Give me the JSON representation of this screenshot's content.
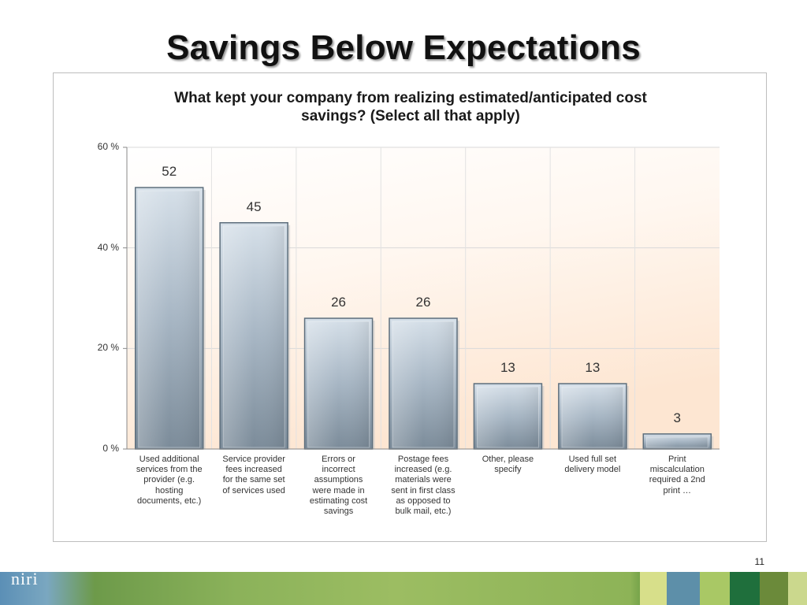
{
  "slide": {
    "title": "Savings Below Expectations",
    "page_number": "11",
    "logo_text": "niri"
  },
  "colors": {
    "bar_top": "#d4dee7",
    "bar_bottom": "#7e8e9c",
    "bar_border": "#5d6e7c",
    "plot_bg_top": "#ffffff",
    "plot_bg_bottom": "#fde8d6",
    "footer_green": "#8bb25a",
    "footer_blue": "#5b8fb6"
  },
  "chart_data": {
    "type": "bar",
    "title_lines": [
      "What kept your company from realizing estimated/anticipated cost",
      "savings? (Select all that apply)"
    ],
    "categories": [
      [
        "Used additional",
        "services from the",
        "provider (e.g.",
        "hosting",
        "documents, etc.)"
      ],
      [
        "Service provider",
        "fees increased",
        "for the same set",
        "of services used"
      ],
      [
        "Errors or",
        "incorrect",
        "assumptions",
        "were made in",
        "estimating cost",
        "savings"
      ],
      [
        "Postage fees",
        "increased (e.g.",
        "materials were",
        "sent in first class",
        "as opposed to",
        "bulk mail, etc.)"
      ],
      [
        "Other, please",
        "specify"
      ],
      [
        "Used full set",
        "delivery model"
      ],
      [
        "Print",
        "miscalculation",
        "required a 2nd",
        "print  …"
      ]
    ],
    "values": [
      52,
      45,
      26,
      26,
      13,
      13,
      3
    ],
    "value_labels": [
      "52",
      "45",
      "26",
      "26",
      "13",
      "13",
      "3"
    ],
    "y_ticks": [
      "60 %",
      "40 %",
      "20 %",
      "0 %"
    ],
    "y_tick_values": [
      60,
      40,
      20,
      0
    ],
    "ylim": [
      0,
      60
    ],
    "grid": true
  }
}
